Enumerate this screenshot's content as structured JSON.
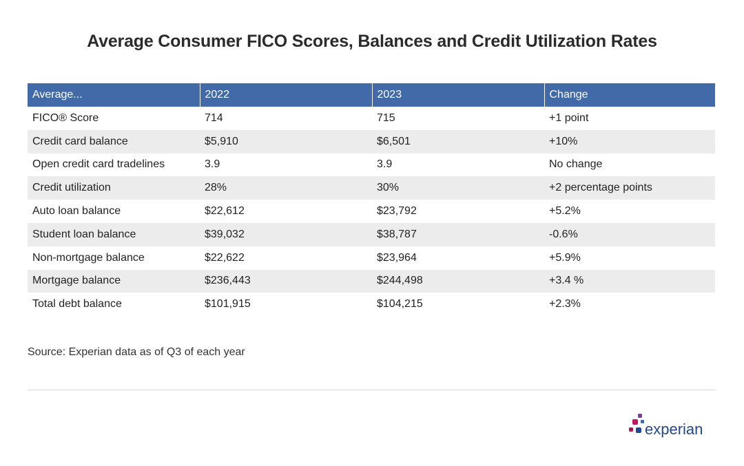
{
  "title": "Average Consumer FICO Scores, Balances and Credit Utilization Rates",
  "source": "Source: Experian data as of Q3 of each year",
  "logo": {
    "text": "experian",
    "dot_colors": [
      "#7b3f98",
      "#c2185b",
      "#426aa8",
      "#ad1457",
      "#26478d"
    ]
  },
  "colors": {
    "header_bg": "#426aa8",
    "row_alt_bg": "#ececec"
  },
  "chart_data": {
    "type": "table",
    "title": "Average Consumer FICO Scores, Balances and Credit Utilization Rates",
    "columns": [
      "Average...",
      "2022",
      "2023",
      "Change"
    ],
    "rows": [
      [
        "FICO® Score",
        "714",
        "715",
        "+1 point"
      ],
      [
        "Credit card balance",
        "$5,910",
        "$6,501",
        "+10%"
      ],
      [
        "Open credit card tradelines",
        "3.9",
        "3.9",
        "No change"
      ],
      [
        "Credit utilization",
        "28%",
        "30%",
        "+2 percentage points"
      ],
      [
        "Auto loan balance",
        "$22,612",
        "$23,792",
        "+5.2%"
      ],
      [
        "Student loan balance",
        "$39,032",
        "$38,787",
        "-0.6%"
      ],
      [
        "Non-mortgage balance",
        "$22,622",
        "$23,964",
        "+5.9%"
      ],
      [
        "Mortgage balance",
        "$236,443",
        "$244,498",
        "+3.4 %"
      ],
      [
        "Total debt balance",
        "$101,915",
        "$104,215",
        "+2.3%"
      ]
    ]
  }
}
